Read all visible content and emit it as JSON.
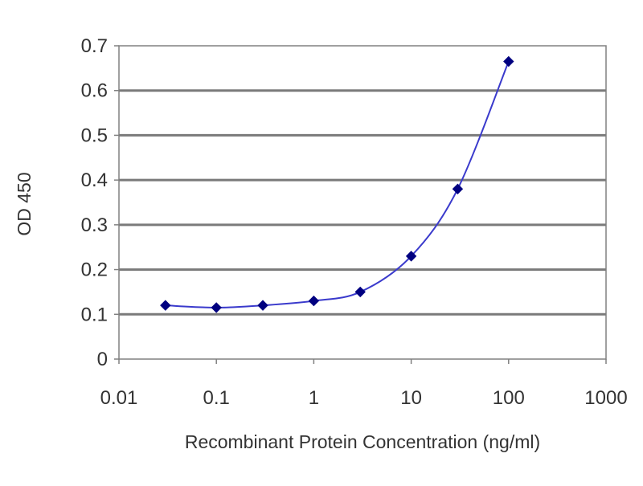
{
  "chart_data": {
    "type": "scatter",
    "xlabel": "Recombinant Protein Concentration (ng/ml)",
    "ylabel": "OD 450",
    "x_scale": "log",
    "xlim": [
      0.01,
      1000
    ],
    "ylim": [
      0,
      0.7
    ],
    "x_ticks": [
      0.01,
      0.1,
      1,
      10,
      100,
      1000
    ],
    "x_tick_labels": [
      "0.01",
      "0.1",
      "1",
      "10",
      "100",
      "1000"
    ],
    "y_ticks": [
      0,
      0.1,
      0.2,
      0.3,
      0.4,
      0.5,
      0.6,
      0.7
    ],
    "y_tick_labels": [
      "0",
      "0.1",
      "0.2",
      "0.3",
      "0.4",
      "0.5",
      "0.6",
      "0.7"
    ],
    "grid": "horizontal",
    "legend": "none",
    "series": [
      {
        "x": [
          0.03,
          0.1,
          0.3,
          1,
          3,
          10,
          30,
          100
        ],
        "y": [
          0.12,
          0.115,
          0.12,
          0.13,
          0.15,
          0.23,
          0.38,
          0.665
        ],
        "marker": "diamond",
        "line": "smooth",
        "color": "#000080",
        "line_color": "#3a3acc"
      }
    ]
  }
}
